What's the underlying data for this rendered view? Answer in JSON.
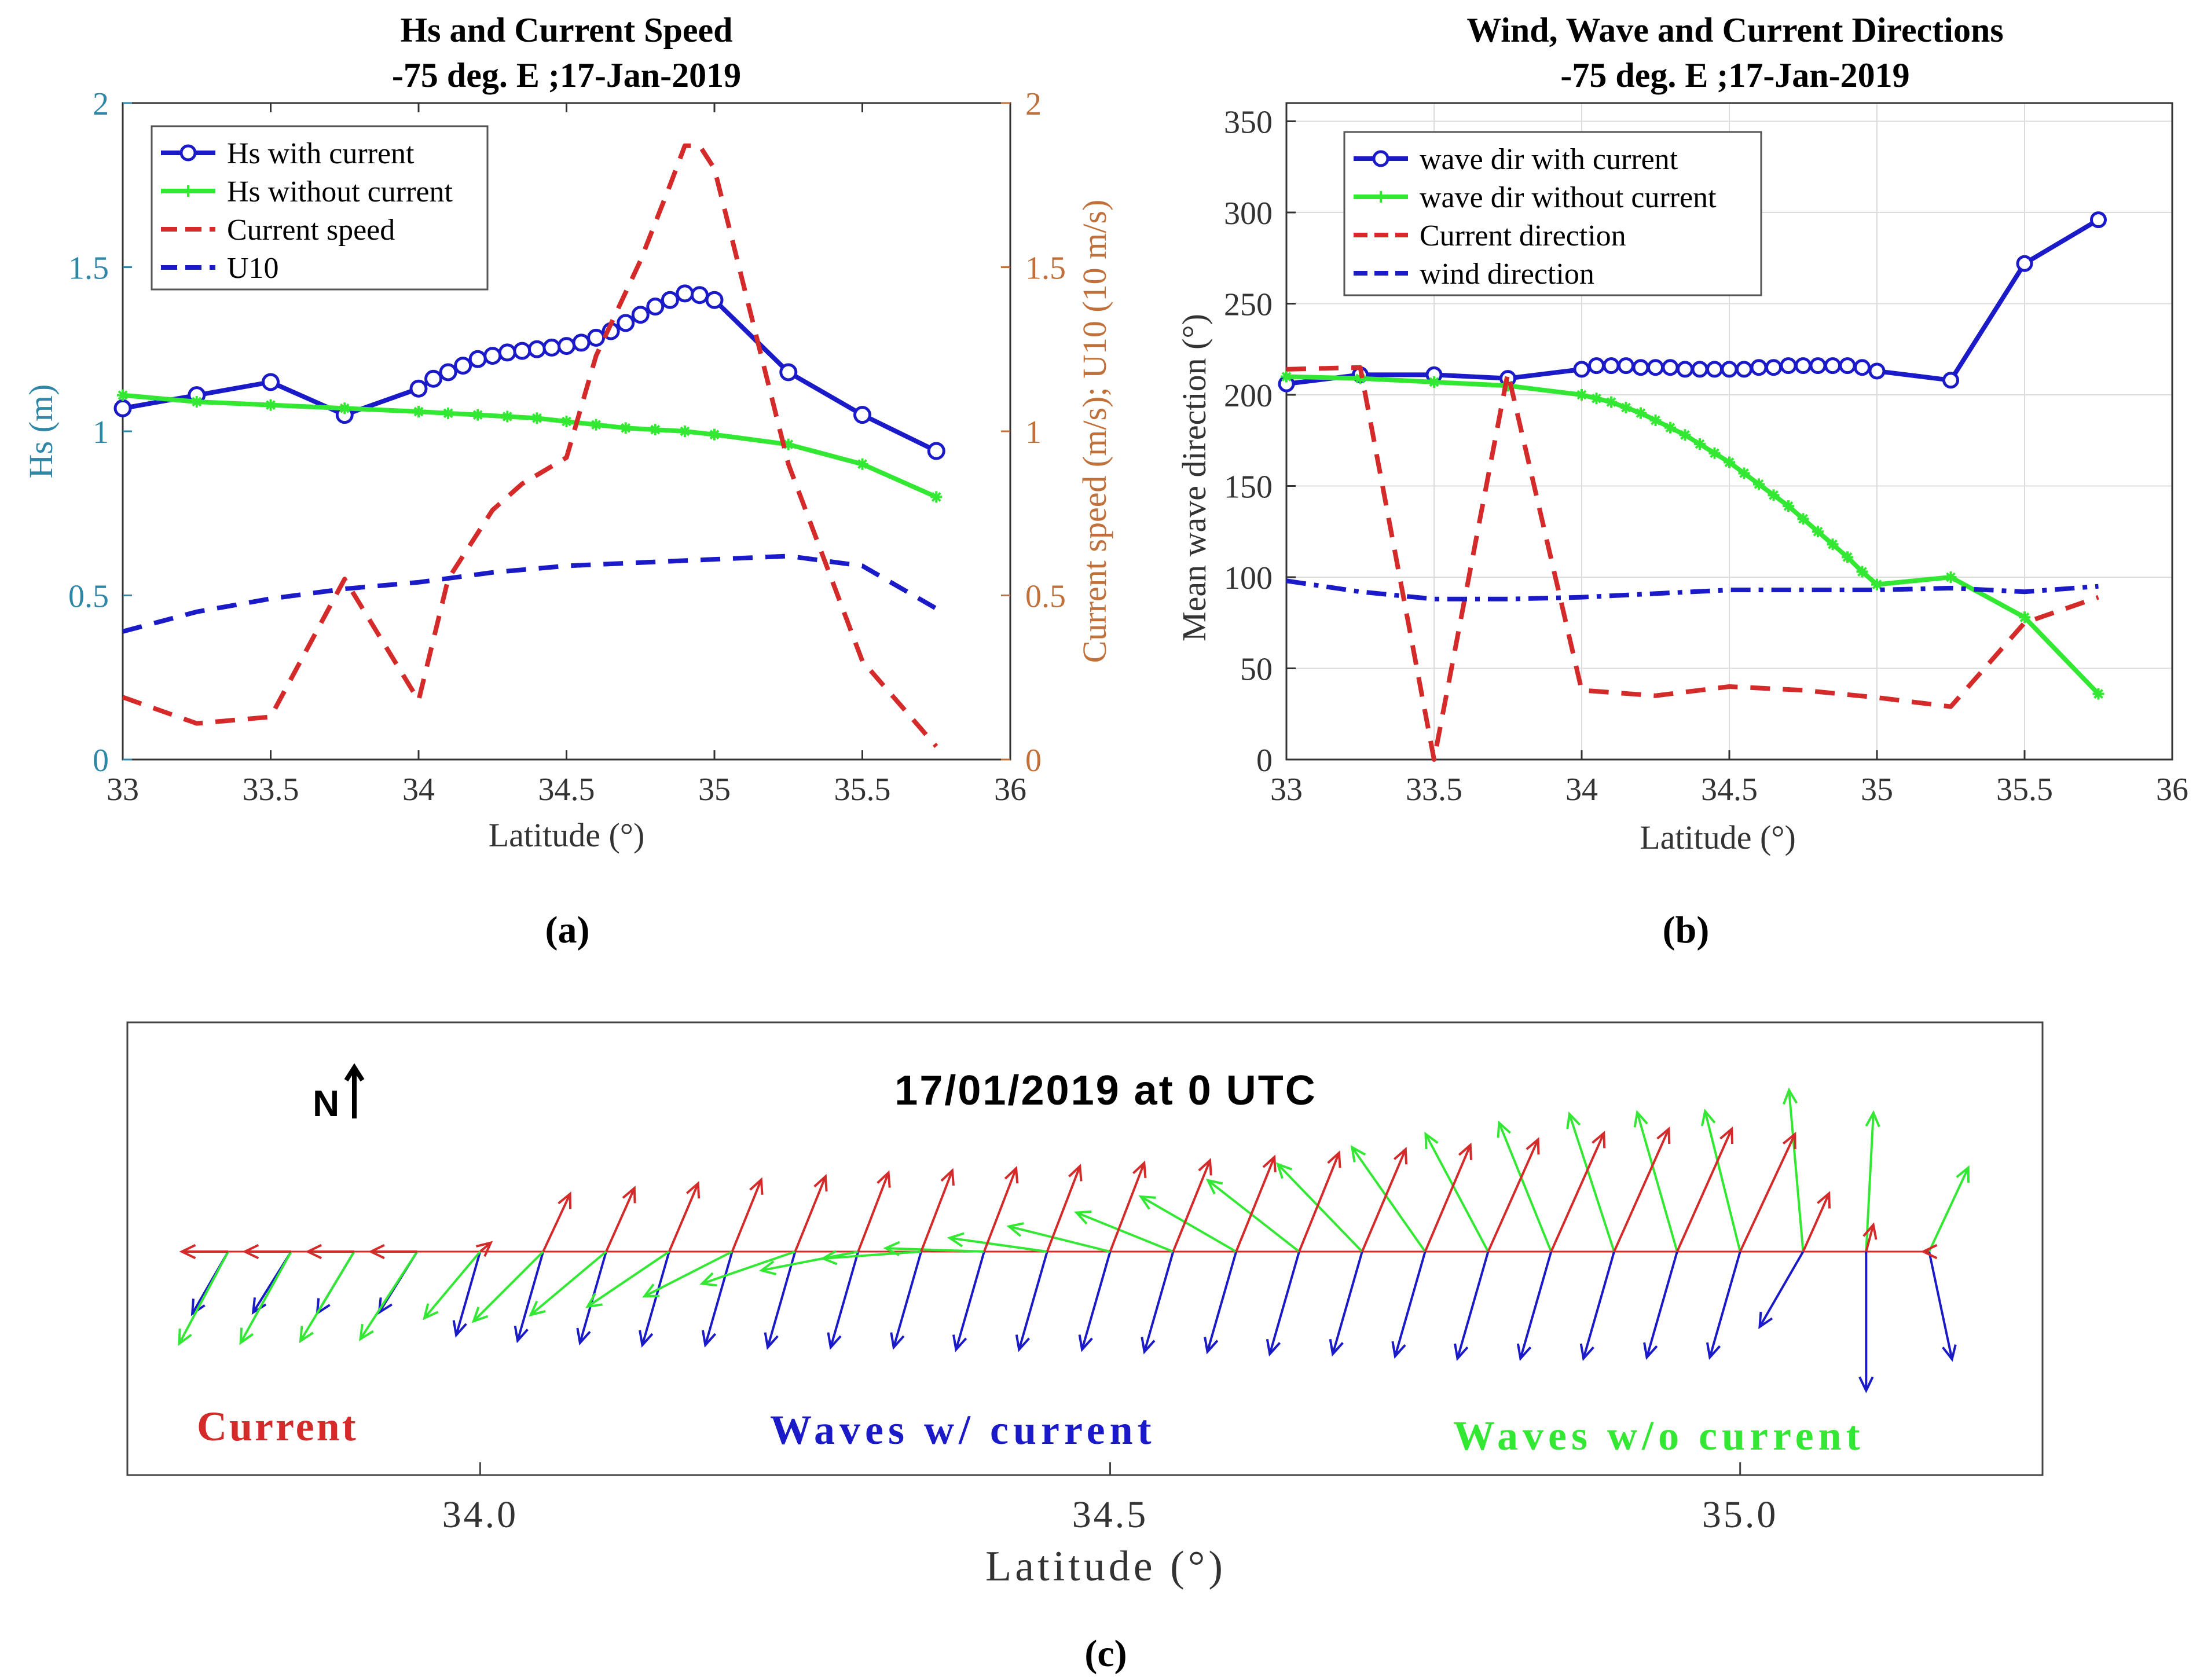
{
  "chart_data": [
    {
      "panel": "a",
      "type": "line",
      "caption": "(a)",
      "title": "Hs and Current Speed",
      "subtitle": "-75 deg. E ;17-Jan-2019",
      "xlabel": "Latitude (°)",
      "ylabel": "Hs (m)",
      "ylabel_right": "Current speed (m/s); U10 (10 m/s)",
      "xlim": [
        33,
        36
      ],
      "ylim": [
        0,
        2
      ],
      "ylim_right": [
        0,
        2
      ],
      "xticks": [
        "33",
        "33.5",
        "34",
        "34.5",
        "35",
        "35.5",
        "36"
      ],
      "yticks": [
        "0",
        "0.5",
        "1",
        "1.5",
        "2"
      ],
      "yticks_right": [
        "0",
        "0.5",
        "1",
        "1.5",
        "2"
      ],
      "legend": [
        "Hs with current",
        "Hs without current",
        "Current speed",
        "U10"
      ],
      "legend_position": "top-left",
      "colors": {
        "axis_left": "#2f87a8",
        "axis_right": "#c0703a",
        "with": "#1a1ac8",
        "without": "#33e833",
        "current": "#d42a2a",
        "wind": "#1a1ac8"
      },
      "series": [
        {
          "name": "Hs with current",
          "axis": "left",
          "style": "solid-circle",
          "x": [
            33,
            33.25,
            33.5,
            33.75,
            34,
            34.05,
            34.1,
            34.15,
            34.2,
            34.25,
            34.3,
            34.35,
            34.4,
            34.45,
            34.5,
            34.55,
            34.6,
            34.65,
            34.7,
            34.75,
            34.8,
            34.85,
            34.9,
            34.95,
            35,
            35.25,
            35.5,
            35.75
          ],
          "y": [
            1.07,
            1.11,
            1.15,
            1.05,
            1.13,
            1.16,
            1.18,
            1.2,
            1.22,
            1.23,
            1.24,
            1.245,
            1.25,
            1.255,
            1.26,
            1.27,
            1.285,
            1.305,
            1.33,
            1.355,
            1.38,
            1.4,
            1.42,
            1.415,
            1.4,
            1.18,
            1.05,
            0.94
          ]
        },
        {
          "name": "Hs without current",
          "axis": "left",
          "style": "solid-star",
          "x": [
            33,
            33.25,
            33.5,
            33.75,
            34,
            34.1,
            34.2,
            34.3,
            34.4,
            34.5,
            34.6,
            34.7,
            34.8,
            34.9,
            35,
            35.25,
            35.5,
            35.75
          ],
          "y": [
            1.11,
            1.09,
            1.08,
            1.07,
            1.06,
            1.055,
            1.05,
            1.045,
            1.04,
            1.03,
            1.02,
            1.01,
            1.005,
            1.0,
            0.99,
            0.96,
            0.9,
            0.8
          ]
        },
        {
          "name": "Current speed",
          "axis": "right",
          "style": "dashed",
          "x": [
            33,
            33.25,
            33.5,
            33.75,
            34,
            34.1,
            34.25,
            34.35,
            34.5,
            34.6,
            34.75,
            34.85,
            34.9,
            34.95,
            35,
            35.25,
            35.5,
            35.75
          ],
          "y": [
            0.19,
            0.11,
            0.13,
            0.55,
            0.18,
            0.55,
            0.76,
            0.84,
            0.92,
            1.23,
            1.52,
            1.75,
            1.87,
            1.87,
            1.8,
            0.9,
            0.3,
            0.04
          ]
        },
        {
          "name": "U10",
          "axis": "right",
          "style": "dashed",
          "x": [
            33,
            33.25,
            33.5,
            33.75,
            34,
            34.25,
            34.5,
            34.75,
            35,
            35.25,
            35.5,
            35.75
          ],
          "y": [
            0.39,
            0.45,
            0.49,
            0.52,
            0.54,
            0.57,
            0.59,
            0.6,
            0.61,
            0.62,
            0.59,
            0.46
          ]
        }
      ]
    },
    {
      "panel": "b",
      "type": "line",
      "caption": "(b)",
      "title": "Wind, Wave and Current Directions",
      "subtitle": "-75 deg. E ;17-Jan-2019",
      "xlabel": "Latitude (°)",
      "ylabel": "Mean wave direction (°)",
      "xlim": [
        33,
        36
      ],
      "ylim": [
        0,
        360
      ],
      "xticks": [
        "33",
        "33.5",
        "34",
        "34.5",
        "35",
        "35.5",
        "36"
      ],
      "yticks": [
        "0",
        "50",
        "100",
        "150",
        "200",
        "250",
        "300",
        "350"
      ],
      "legend": [
        "wave dir with current",
        "wave dir without current",
        "Current direction",
        "wind direction"
      ],
      "legend_position": "top-left",
      "series": [
        {
          "name": "wave dir with current",
          "style": "solid-circle",
          "x": [
            33,
            33.25,
            33.5,
            33.75,
            34,
            34.05,
            34.1,
            34.15,
            34.2,
            34.25,
            34.3,
            34.35,
            34.4,
            34.45,
            34.5,
            34.55,
            34.6,
            34.65,
            34.7,
            34.75,
            34.8,
            34.85,
            34.9,
            34.95,
            35,
            35.25,
            35.5,
            35.75
          ],
          "y": [
            206,
            211,
            211,
            209,
            214,
            216,
            216,
            216,
            215,
            215,
            215,
            214,
            214,
            214,
            214,
            214,
            215,
            215,
            216,
            216,
            216,
            216,
            216,
            215,
            213,
            208,
            272,
            296
          ]
        },
        {
          "name": "wave dir without current",
          "style": "solid-star",
          "x": [
            33,
            33.25,
            33.5,
            33.75,
            34,
            34.05,
            34.1,
            34.15,
            34.2,
            34.25,
            34.3,
            34.35,
            34.4,
            34.45,
            34.5,
            34.55,
            34.6,
            34.65,
            34.7,
            34.75,
            34.8,
            34.85,
            34.9,
            34.95,
            35,
            35.25,
            35.5,
            35.75
          ],
          "y": [
            210,
            209,
            207,
            205,
            200,
            198,
            196,
            193,
            190,
            186,
            182,
            178,
            173,
            168,
            163,
            157,
            151,
            145,
            139,
            132,
            125,
            118,
            111,
            103,
            96,
            100,
            78,
            36
          ]
        },
        {
          "name": "Current direction",
          "style": "dashed",
          "x": [
            33,
            33.25,
            33.5,
            33.75,
            34,
            34.25,
            34.5,
            34.75,
            35,
            35.25,
            35.5,
            35.75
          ],
          "y": [
            214,
            215,
            0,
            212,
            38,
            35,
            40,
            38,
            34,
            29,
            75,
            89
          ]
        },
        {
          "name": "wind direction",
          "style": "dashdot",
          "x": [
            33,
            33.25,
            33.5,
            33.75,
            34,
            34.25,
            34.5,
            34.75,
            35,
            35.25,
            35.5,
            35.75
          ],
          "y": [
            98,
            92,
            88,
            88,
            89,
            91,
            93,
            93,
            93,
            94,
            92,
            95
          ]
        }
      ]
    },
    {
      "panel": "c",
      "type": "vector-field",
      "caption": "(c)",
      "title": "17/01/2019 at 0 UTC",
      "north_label": "N",
      "xlabel": "Latitude (°)",
      "xlim": [
        33.72,
        35.24
      ],
      "xticks": [
        "34.0",
        "34.5",
        "35.0"
      ],
      "xtick_values": [
        34.0,
        34.5,
        35.0
      ],
      "labels": {
        "current": "Current",
        "waves_with": "Waves w/ current",
        "waves_without": "Waves w/o current"
      },
      "arrow_length_units": 100,
      "current_arrows": [
        {
          "lat": 33.8,
          "dir": 270,
          "mag": 0.4
        },
        {
          "lat": 33.85,
          "dir": 270,
          "mag": 0.4
        },
        {
          "lat": 33.9,
          "dir": 270,
          "mag": 0.4
        },
        {
          "lat": 33.95,
          "dir": 270,
          "mag": 0.4
        },
        {
          "lat": 34.0,
          "dir": 50,
          "mag": 0.12
        },
        {
          "lat": 34.05,
          "dir": 25,
          "mag": 0.55
        },
        {
          "lat": 34.1,
          "dir": 24,
          "mag": 0.6
        },
        {
          "lat": 34.15,
          "dir": 23,
          "mag": 0.64
        },
        {
          "lat": 34.2,
          "dir": 22,
          "mag": 0.67
        },
        {
          "lat": 34.25,
          "dir": 22,
          "mag": 0.7
        },
        {
          "lat": 34.3,
          "dir": 21,
          "mag": 0.73
        },
        {
          "lat": 34.35,
          "dir": 21,
          "mag": 0.75
        },
        {
          "lat": 34.4,
          "dir": 21,
          "mag": 0.77
        },
        {
          "lat": 34.45,
          "dir": 21,
          "mag": 0.79
        },
        {
          "lat": 34.5,
          "dir": 21,
          "mag": 0.82
        },
        {
          "lat": 34.55,
          "dir": 22,
          "mag": 0.85
        },
        {
          "lat": 34.6,
          "dir": 22,
          "mag": 0.88
        },
        {
          "lat": 34.65,
          "dir": 22,
          "mag": 0.92
        },
        {
          "lat": 34.7,
          "dir": 23,
          "mag": 0.96
        },
        {
          "lat": 34.75,
          "dir": 23,
          "mag": 1.0
        },
        {
          "lat": 34.8,
          "dir": 24,
          "mag": 1.06
        },
        {
          "lat": 34.85,
          "dir": 24,
          "mag": 1.12
        },
        {
          "lat": 34.9,
          "dir": 24,
          "mag": 1.16
        },
        {
          "lat": 34.95,
          "dir": 24,
          "mag": 1.16
        },
        {
          "lat": 35.0,
          "dir": 25,
          "mag": 1.12
        },
        {
          "lat": 35.05,
          "dir": 24,
          "mag": 0.55
        },
        {
          "lat": 35.1,
          "dir": 15,
          "mag": 0.24
        },
        {
          "lat": 35.15,
          "dir": 270,
          "mag": 0.05
        }
      ],
      "waves_with_arrows": [
        {
          "lat": 33.8,
          "dir": 210,
          "mag": 0.62
        },
        {
          "lat": 33.85,
          "dir": 212,
          "mag": 0.62
        },
        {
          "lat": 33.9,
          "dir": 211,
          "mag": 0.62
        },
        {
          "lat": 33.95,
          "dir": 212,
          "mag": 0.62
        },
        {
          "lat": 34.0,
          "dir": 196,
          "mag": 0.75
        },
        {
          "lat": 34.05,
          "dir": 196,
          "mag": 0.8
        },
        {
          "lat": 34.1,
          "dir": 196,
          "mag": 0.82
        },
        {
          "lat": 34.15,
          "dir": 196,
          "mag": 0.84
        },
        {
          "lat": 34.2,
          "dir": 196,
          "mag": 0.84
        },
        {
          "lat": 34.25,
          "dir": 196,
          "mag": 0.86
        },
        {
          "lat": 34.3,
          "dir": 196,
          "mag": 0.86
        },
        {
          "lat": 34.35,
          "dir": 196,
          "mag": 0.86
        },
        {
          "lat": 34.4,
          "dir": 196,
          "mag": 0.88
        },
        {
          "lat": 34.45,
          "dir": 196,
          "mag": 0.88
        },
        {
          "lat": 34.5,
          "dir": 196,
          "mag": 0.88
        },
        {
          "lat": 34.55,
          "dir": 196,
          "mag": 0.9
        },
        {
          "lat": 34.6,
          "dir": 196,
          "mag": 0.9
        },
        {
          "lat": 34.65,
          "dir": 196,
          "mag": 0.92
        },
        {
          "lat": 34.7,
          "dir": 196,
          "mag": 0.92
        },
        {
          "lat": 34.75,
          "dir": 196,
          "mag": 0.94
        },
        {
          "lat": 34.8,
          "dir": 196,
          "mag": 0.96
        },
        {
          "lat": 34.85,
          "dir": 196,
          "mag": 0.96
        },
        {
          "lat": 34.9,
          "dir": 196,
          "mag": 0.96
        },
        {
          "lat": 34.95,
          "dir": 196,
          "mag": 0.95
        },
        {
          "lat": 35.0,
          "dir": 196,
          "mag": 0.95
        },
        {
          "lat": 35.05,
          "dir": 210,
          "mag": 0.75
        },
        {
          "lat": 35.1,
          "dir": 180,
          "mag": 1.2
        },
        {
          "lat": 35.15,
          "dir": 168,
          "mag": 0.95
        }
      ],
      "waves_without_arrows": [
        {
          "lat": 33.8,
          "dir": 208,
          "mag": 0.9
        },
        {
          "lat": 33.85,
          "dir": 209,
          "mag": 0.9
        },
        {
          "lat": 33.9,
          "dir": 211,
          "mag": 0.9
        },
        {
          "lat": 33.95,
          "dir": 213,
          "mag": 0.9
        },
        {
          "lat": 34.0,
          "dir": 220,
          "mag": 0.75
        },
        {
          "lat": 34.05,
          "dir": 225,
          "mag": 0.85
        },
        {
          "lat": 34.1,
          "dir": 230,
          "mag": 0.85
        },
        {
          "lat": 34.15,
          "dir": 236,
          "mag": 0.85
        },
        {
          "lat": 34.2,
          "dir": 243,
          "mag": 0.85
        },
        {
          "lat": 34.25,
          "dir": 251,
          "mag": 0.85
        },
        {
          "lat": 34.3,
          "dir": 259,
          "mag": 0.85
        },
        {
          "lat": 34.35,
          "dir": 266,
          "mag": 0.85
        },
        {
          "lat": 34.4,
          "dir": 272,
          "mag": 0.85
        },
        {
          "lat": 34.45,
          "dir": 278,
          "mag": 0.85
        },
        {
          "lat": 34.5,
          "dir": 284,
          "mag": 0.9
        },
        {
          "lat": 34.55,
          "dir": 292,
          "mag": 0.9
        },
        {
          "lat": 34.6,
          "dir": 300,
          "mag": 0.95
        },
        {
          "lat": 34.65,
          "dir": 308,
          "mag": 1.0
        },
        {
          "lat": 34.7,
          "dir": 316,
          "mag": 1.05
        },
        {
          "lat": 34.75,
          "dir": 325,
          "mag": 1.1
        },
        {
          "lat": 34.8,
          "dir": 332,
          "mag": 1.15
        },
        {
          "lat": 34.85,
          "dir": 338,
          "mag": 1.2
        },
        {
          "lat": 34.9,
          "dir": 342,
          "mag": 1.25
        },
        {
          "lat": 34.95,
          "dir": 344,
          "mag": 1.25
        },
        {
          "lat": 35.0,
          "dir": 346,
          "mag": 1.25
        },
        {
          "lat": 35.05,
          "dir": 355,
          "mag": 1.4
        },
        {
          "lat": 35.1,
          "dir": 3,
          "mag": 1.2
        },
        {
          "lat": 35.15,
          "dir": 25,
          "mag": 0.8
        }
      ]
    }
  ]
}
